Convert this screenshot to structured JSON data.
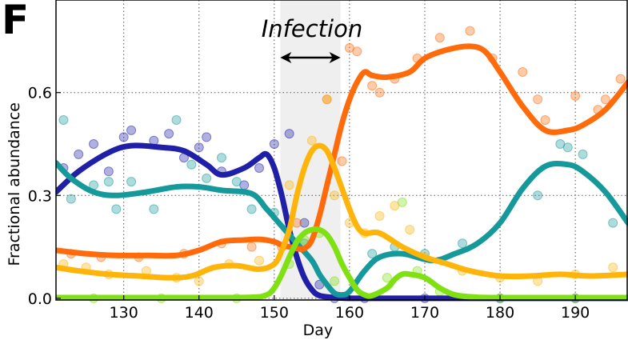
{
  "panel_label": "F",
  "chart_data": {
    "type": "line",
    "xlabel": "Day",
    "ylabel": "Fractional abundance",
    "xlim": [
      121,
      197
    ],
    "ylim": [
      -0.005,
      0.87
    ],
    "xticks": [
      130,
      140,
      150,
      160,
      170,
      180,
      190
    ],
    "yticks": [
      0.0,
      0.3,
      0.6
    ],
    "ytick_labels": [
      "0.0",
      "0.3",
      "0.6"
    ],
    "grid": true,
    "shaded_region": {
      "x": [
        150.8,
        158.8
      ],
      "label": "Infection",
      "color": "#efefef"
    },
    "series": [
      {
        "color": "#1f1fa8",
        "x": [
          121,
          124,
          128,
          131,
          135,
          138,
          141,
          143,
          146,
          148,
          149,
          150,
          151,
          152,
          153,
          154,
          155,
          156,
          158,
          160,
          162,
          165,
          170,
          175,
          180,
          190,
          197
        ],
        "values": [
          0.31,
          0.37,
          0.425,
          0.445,
          0.44,
          0.43,
          0.39,
          0.36,
          0.38,
          0.41,
          0.42,
          0.38,
          0.3,
          0.2,
          0.12,
          0.06,
          0.025,
          0.008,
          0.002,
          0.0,
          0.0,
          0.0,
          0.0,
          0.0,
          0.0,
          0.0,
          0.0
        ]
      },
      {
        "color": "#16999b",
        "x": [
          121,
          123,
          126,
          129,
          133,
          137,
          140,
          143,
          147,
          149,
          151,
          153,
          155,
          156,
          157,
          158,
          159,
          160,
          162,
          164,
          167,
          171,
          174,
          177,
          180,
          183,
          186,
          189,
          191,
          194,
          197
        ],
        "values": [
          0.395,
          0.35,
          0.31,
          0.3,
          0.31,
          0.325,
          0.325,
          0.315,
          0.305,
          0.26,
          0.21,
          0.16,
          0.11,
          0.07,
          0.04,
          0.015,
          0.01,
          0.02,
          0.08,
          0.12,
          0.13,
          0.11,
          0.13,
          0.16,
          0.22,
          0.32,
          0.385,
          0.39,
          0.37,
          0.31,
          0.22
        ]
      },
      {
        "color": "#ff6a0a",
        "x": [
          121,
          125,
          129,
          133,
          137,
          140,
          143,
          146,
          148,
          150,
          151,
          152,
          153,
          154,
          155,
          156,
          157,
          158,
          159,
          160,
          161,
          162,
          163,
          165,
          168,
          170,
          173,
          176,
          178,
          180,
          183,
          186,
          189,
          191,
          194,
          197
        ],
        "values": [
          0.14,
          0.13,
          0.125,
          0.125,
          0.125,
          0.14,
          0.165,
          0.17,
          0.172,
          0.165,
          0.155,
          0.15,
          0.145,
          0.145,
          0.17,
          0.24,
          0.33,
          0.42,
          0.51,
          0.58,
          0.63,
          0.66,
          0.65,
          0.645,
          0.66,
          0.7,
          0.725,
          0.735,
          0.72,
          0.66,
          0.56,
          0.49,
          0.49,
          0.505,
          0.55,
          0.63
        ]
      },
      {
        "color": "#ffb40a",
        "x": [
          121,
          124,
          128,
          132,
          136,
          139,
          142,
          145,
          148,
          150,
          151,
          152,
          153,
          154,
          155,
          156,
          157,
          158,
          159,
          160,
          161,
          162,
          164,
          167,
          170,
          173,
          176,
          180,
          184,
          188,
          192,
          197
        ],
        "values": [
          0.09,
          0.08,
          0.07,
          0.065,
          0.06,
          0.065,
          0.09,
          0.095,
          0.085,
          0.1,
          0.14,
          0.2,
          0.3,
          0.38,
          0.43,
          0.445,
          0.43,
          0.38,
          0.32,
          0.26,
          0.21,
          0.19,
          0.19,
          0.15,
          0.12,
          0.1,
          0.08,
          0.065,
          0.065,
          0.07,
          0.065,
          0.07
        ]
      },
      {
        "color": "#7fe012",
        "x": [
          121,
          130,
          140,
          147,
          149,
          150,
          151,
          152,
          153,
          154,
          155,
          156,
          157,
          158,
          159,
          160,
          161,
          162,
          163,
          165,
          166,
          167,
          168,
          170,
          172,
          174,
          177,
          182,
          190,
          197
        ],
        "values": [
          0.002,
          0.002,
          0.002,
          0.003,
          0.01,
          0.03,
          0.07,
          0.12,
          0.165,
          0.19,
          0.2,
          0.2,
          0.185,
          0.15,
          0.1,
          0.06,
          0.025,
          0.01,
          0.008,
          0.03,
          0.055,
          0.07,
          0.07,
          0.06,
          0.03,
          0.01,
          0.003,
          0.002,
          0.002,
          0.002
        ]
      }
    ],
    "scatter": {
      "alpha": 0.35,
      "points": [
        {
          "color": "#1f1fa8",
          "x": [
            122,
            124,
            126,
            128,
            130,
            131,
            134,
            136,
            138,
            140,
            141,
            143,
            146,
            148,
            150,
            152,
            154,
            156,
            158,
            162,
            170,
            180,
            190
          ],
          "y": [
            0.38,
            0.42,
            0.45,
            0.37,
            0.47,
            0.49,
            0.46,
            0.48,
            0.41,
            0.44,
            0.47,
            0.37,
            0.33,
            0.38,
            0.45,
            0.48,
            0.22,
            0.04,
            0.0,
            0.0,
            0.0,
            0.0,
            0.0
          ]
        },
        {
          "color": "#16999b",
          "x": [
            122,
            123,
            126,
            128,
            129,
            131,
            134,
            137,
            139,
            141,
            143,
            145,
            147,
            150,
            152,
            154,
            163,
            166,
            170,
            175,
            185,
            188,
            189,
            191,
            195
          ],
          "y": [
            0.52,
            0.29,
            0.33,
            0.34,
            0.26,
            0.34,
            0.26,
            0.52,
            0.39,
            0.35,
            0.41,
            0.34,
            0.26,
            0.25,
            0.23,
            0.16,
            0.13,
            0.15,
            0.13,
            0.16,
            0.3,
            0.45,
            0.44,
            0.42,
            0.22
          ]
        },
        {
          "color": "#ff6a0a",
          "x": [
            123,
            127,
            132,
            138,
            143,
            147,
            151,
            153,
            157,
            159,
            160,
            161,
            163,
            164,
            166,
            169,
            172,
            176,
            179,
            183,
            185,
            186,
            190,
            193,
            194,
            196
          ],
          "y": [
            0.13,
            0.12,
            0.12,
            0.13,
            0.16,
            0.15,
            0.15,
            0.22,
            0.58,
            0.4,
            0.73,
            0.72,
            0.62,
            0.6,
            0.64,
            0.7,
            0.76,
            0.78,
            0.7,
            0.66,
            0.58,
            0.52,
            0.59,
            0.55,
            0.58,
            0.64
          ]
        },
        {
          "color": "#ffb40a",
          "x": [
            122,
            125,
            128,
            133,
            137,
            140,
            144,
            148,
            152,
            155,
            157,
            158,
            160,
            162,
            164,
            166,
            168,
            170,
            175,
            180,
            185,
            190,
            195
          ],
          "y": [
            0.1,
            0.09,
            0.07,
            0.08,
            0.06,
            0.05,
            0.1,
            0.11,
            0.33,
            0.46,
            0.58,
            0.3,
            0.22,
            0.19,
            0.24,
            0.27,
            0.2,
            0.12,
            0.08,
            0.06,
            0.05,
            0.07,
            0.09
          ]
        },
        {
          "color": "#7fe012",
          "x": [
            126,
            135,
            145,
            152,
            154,
            156,
            158,
            165,
            167,
            169,
            172,
            180,
            190
          ],
          "y": [
            0.0,
            0.0,
            0.0,
            0.1,
            0.17,
            0.19,
            0.05,
            0.06,
            0.28,
            0.08,
            0.02,
            0.0,
            0.0
          ]
        }
      ]
    }
  }
}
